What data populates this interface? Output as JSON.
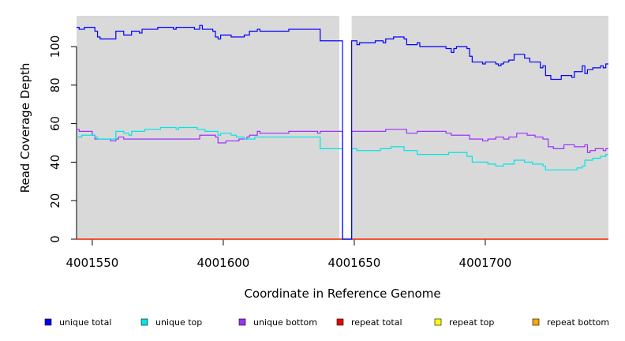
{
  "chart_data": {
    "type": "line",
    "title": "",
    "xlabel": "Coordinate in Reference Genome",
    "ylabel": "Read Coverage Depth",
    "xlim": [
      4001544,
      4001747
    ],
    "ylim": [
      0,
      116
    ],
    "xticks": [
      4001550,
      4001600,
      4001650,
      4001700
    ],
    "yticks": [
      0,
      20,
      40,
      60,
      80,
      100
    ],
    "grid": false,
    "background": "#d9d9d9",
    "gap_region": [
      4001644.3,
      4001649
    ],
    "legend_position": "bottom",
    "series": [
      {
        "name": "unique total",
        "color": "#0000ff",
        "points": [
          [
            4001544,
            110
          ],
          [
            4001545,
            109
          ],
          [
            4001547,
            110
          ],
          [
            4001551,
            108
          ],
          [
            4001552,
            105
          ],
          [
            4001553,
            104
          ],
          [
            4001559,
            108
          ],
          [
            4001562,
            106
          ],
          [
            4001565,
            108
          ],
          [
            4001568,
            107
          ],
          [
            4001569,
            109
          ],
          [
            4001575,
            110
          ],
          [
            4001581,
            109
          ],
          [
            4001582,
            110
          ],
          [
            4001589,
            109
          ],
          [
            4001591,
            111
          ],
          [
            4001592,
            109
          ],
          [
            4001596,
            108
          ],
          [
            4001597,
            105
          ],
          [
            4001598,
            104
          ],
          [
            4001599,
            106
          ],
          [
            4001603,
            105
          ],
          [
            4001608,
            106
          ],
          [
            4001610,
            108
          ],
          [
            4001613,
            109
          ],
          [
            4001614,
            108
          ],
          [
            4001625,
            109
          ],
          [
            4001637,
            103
          ],
          [
            4001645.5,
            0
          ],
          [
            4001649,
            103
          ],
          [
            4001651,
            101
          ],
          [
            4001652,
            102
          ],
          [
            4001658,
            103
          ],
          [
            4001661,
            102
          ],
          [
            4001662,
            104
          ],
          [
            4001665,
            105
          ],
          [
            4001669,
            104
          ],
          [
            4001670,
            101
          ],
          [
            4001674,
            102
          ],
          [
            4001675,
            100
          ],
          [
            4001685,
            99
          ],
          [
            4001687,
            97
          ],
          [
            4001688,
            99
          ],
          [
            4001689,
            100
          ],
          [
            4001693,
            99
          ],
          [
            4001694,
            95
          ],
          [
            4001695,
            92
          ],
          [
            4001699,
            91
          ],
          [
            4001700,
            92
          ],
          [
            4001704,
            91
          ],
          [
            4001705,
            90
          ],
          [
            4001706,
            91
          ],
          [
            4001707,
            92
          ],
          [
            4001709,
            93
          ],
          [
            4001711,
            96
          ],
          [
            4001715,
            94
          ],
          [
            4001717,
            92
          ],
          [
            4001721,
            89
          ],
          [
            4001722,
            90
          ],
          [
            4001723,
            85
          ],
          [
            4001725,
            83
          ],
          [
            4001729,
            85
          ],
          [
            4001733,
            84
          ],
          [
            4001734,
            87
          ],
          [
            4001737,
            90
          ],
          [
            4001738,
            86
          ],
          [
            4001739,
            88
          ],
          [
            4001741,
            89
          ],
          [
            4001744,
            90
          ],
          [
            4001745,
            89
          ],
          [
            4001746,
            91
          ],
          [
            4001747,
            91
          ]
        ]
      },
      {
        "name": "unique top",
        "color": "#00e5e5",
        "points": [
          [
            4001544,
            53
          ],
          [
            4001546,
            54
          ],
          [
            4001551,
            53
          ],
          [
            4001552,
            52
          ],
          [
            4001559,
            56
          ],
          [
            4001562,
            55
          ],
          [
            4001564,
            54
          ],
          [
            4001565,
            56
          ],
          [
            4001570,
            57
          ],
          [
            4001576,
            58
          ],
          [
            4001582,
            57
          ],
          [
            4001583,
            58
          ],
          [
            4001590,
            57
          ],
          [
            4001593,
            56
          ],
          [
            4001598,
            54
          ],
          [
            4001599,
            55
          ],
          [
            4001603,
            54
          ],
          [
            4001605,
            53
          ],
          [
            4001608,
            52
          ],
          [
            4001612,
            53
          ],
          [
            4001637,
            47
          ],
          [
            4001645.5,
            0
          ],
          [
            4001649,
            47
          ],
          [
            4001651,
            46
          ],
          [
            4001653,
            46
          ],
          [
            4001656,
            46
          ],
          [
            4001660,
            47
          ],
          [
            4001664,
            48
          ],
          [
            4001669,
            46
          ],
          [
            4001674,
            44
          ],
          [
            4001686,
            45
          ],
          [
            4001693,
            43
          ],
          [
            4001695,
            40
          ],
          [
            4001701,
            39
          ],
          [
            4001704,
            38
          ],
          [
            4001707,
            39
          ],
          [
            4001711,
            41
          ],
          [
            4001715,
            40
          ],
          [
            4001718,
            39
          ],
          [
            4001722,
            38
          ],
          [
            4001723,
            36
          ],
          [
            4001735,
            37
          ],
          [
            4001737,
            38
          ],
          [
            4001738,
            41
          ],
          [
            4001741,
            42
          ],
          [
            4001744,
            43
          ],
          [
            4001746,
            44
          ],
          [
            4001747,
            44
          ]
        ]
      },
      {
        "name": "unique bottom",
        "color": "#9b30ff",
        "points": [
          [
            4001544,
            57
          ],
          [
            4001545,
            56
          ],
          [
            4001550,
            54
          ],
          [
            4001551,
            52
          ],
          [
            4001557,
            51
          ],
          [
            4001559,
            52
          ],
          [
            4001560,
            53
          ],
          [
            4001562,
            52
          ],
          [
            4001591,
            54
          ],
          [
            4001597,
            53
          ],
          [
            4001598,
            50
          ],
          [
            4001601,
            51
          ],
          [
            4001606,
            52
          ],
          [
            4001609,
            53
          ],
          [
            4001610,
            54
          ],
          [
            4001613,
            56
          ],
          [
            4001614,
            55
          ],
          [
            4001625,
            56
          ],
          [
            4001636,
            55
          ],
          [
            4001637,
            56
          ],
          [
            4001645.5,
            0
          ],
          [
            4001649,
            56
          ],
          [
            4001662,
            57
          ],
          [
            4001670,
            55
          ],
          [
            4001674,
            56
          ],
          [
            4001685,
            55
          ],
          [
            4001687,
            54
          ],
          [
            4001694,
            52
          ],
          [
            4001699,
            51
          ],
          [
            4001701,
            52
          ],
          [
            4001704,
            53
          ],
          [
            4001707,
            52
          ],
          [
            4001709,
            53
          ],
          [
            4001712,
            55
          ],
          [
            4001716,
            54
          ],
          [
            4001719,
            53
          ],
          [
            4001722,
            52
          ],
          [
            4001724,
            48
          ],
          [
            4001726,
            47
          ],
          [
            4001730,
            49
          ],
          [
            4001734,
            48
          ],
          [
            4001738,
            49
          ],
          [
            4001739,
            45
          ],
          [
            4001740,
            46
          ],
          [
            4001742,
            47
          ],
          [
            4001745,
            46
          ],
          [
            4001746,
            47
          ],
          [
            4001747,
            47
          ]
        ]
      },
      {
        "name": "repeat total",
        "color": "#ee0000",
        "points": [
          [
            4001544,
            0
          ],
          [
            4001747,
            0
          ]
        ]
      },
      {
        "name": "repeat top",
        "color": "#ffff00",
        "points": [
          [
            4001544,
            0
          ],
          [
            4001747,
            0
          ]
        ]
      },
      {
        "name": "repeat bottom",
        "color": "#ffa500",
        "points": [
          [
            4001544,
            0
          ],
          [
            4001747,
            0
          ]
        ]
      }
    ]
  }
}
